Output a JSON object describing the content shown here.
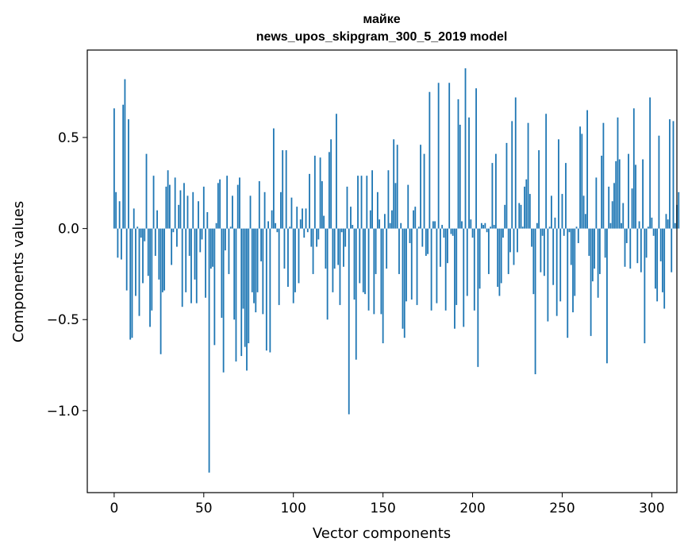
{
  "chart_data": {
    "type": "bar",
    "title_line1": "майке",
    "title_line2": "news_upos_skipgram_300_5_2019 model",
    "xlabel": "Vector components",
    "ylabel": "Components values",
    "xlim": [
      -15,
      314
    ],
    "ylim": [
      -1.45,
      0.98
    ],
    "x_ticks": [
      0,
      50,
      100,
      150,
      200,
      250,
      300
    ],
    "x_tick_labels": [
      "0",
      "50",
      "100",
      "150",
      "200",
      "250",
      "300"
    ],
    "y_ticks": [
      -1.0,
      -0.5,
      0.0,
      0.5
    ],
    "y_tick_labels": [
      "−1.0",
      "−0.5",
      "0.0",
      "0.5"
    ],
    "bar_color": "#1f77b4",
    "values": [
      0.66,
      0.2,
      -0.16,
      0.15,
      -0.17,
      0.68,
      0.82,
      -0.34,
      0.6,
      -0.61,
      -0.6,
      0.11,
      -0.37,
      0.01,
      -0.48,
      -0.05,
      -0.3,
      -0.07,
      0.41,
      -0.26,
      -0.54,
      -0.45,
      0.29,
      -0.15,
      0.1,
      -0.28,
      -0.69,
      -0.35,
      -0.34,
      0.23,
      0.32,
      0.24,
      -0.2,
      -0.02,
      0.28,
      -0.1,
      0.13,
      0.21,
      -0.43,
      0.25,
      -0.35,
      0.18,
      -0.15,
      -0.41,
      0.2,
      -0.28,
      -0.41,
      0.15,
      -0.13,
      -0.06,
      0.23,
      -0.38,
      0.09,
      -1.34,
      -0.22,
      -0.21,
      -0.64,
      0.03,
      0.25,
      0.27,
      -0.49,
      -0.79,
      -0.12,
      0.29,
      -0.25,
      0.01,
      0.18,
      -0.5,
      -0.73,
      0.24,
      0.28,
      -0.7,
      -0.44,
      -0.65,
      -0.78,
      -0.63,
      0.18,
      -0.35,
      -0.41,
      -0.46,
      -0.35,
      0.26,
      -0.18,
      -0.47,
      0.2,
      -0.67,
      0.04,
      -0.68,
      0.1,
      0.55,
      0.03,
      -0.02,
      -0.42,
      0.2,
      0.43,
      -0.22,
      0.43,
      -0.32,
      0.01,
      0.17,
      -0.41,
      -0.35,
      0.12,
      -0.3,
      0.05,
      0.11,
      -0.05,
      0.11,
      -0.02,
      0.3,
      -0.1,
      -0.25,
      0.4,
      -0.1,
      -0.06,
      0.39,
      0.26,
      0.07,
      -0.22,
      -0.5,
      0.42,
      0.49,
      -0.35,
      -0.22,
      0.63,
      -0.2,
      -0.42,
      -0.02,
      -0.21,
      -0.1,
      0.23,
      -1.02,
      0.12,
      0.02,
      -0.39,
      -0.72,
      0.29,
      -0.3,
      0.29,
      -0.35,
      -0.36,
      0.29,
      -0.45,
      0.1,
      0.32,
      -0.47,
      -0.25,
      0.2,
      0.05,
      -0.47,
      -0.63,
      0.08,
      -0.22,
      0.32,
      0.03,
      0.1,
      0.49,
      0.25,
      0.46,
      -0.25,
      0.03,
      -0.55,
      -0.6,
      -0.4,
      0.24,
      -0.08,
      -0.39,
      0.1,
      0.12,
      -0.42,
      0.01,
      0.46,
      -0.1,
      0.41,
      -0.15,
      -0.14,
      0.75,
      -0.45,
      0.04,
      0.04,
      -0.41,
      0.8,
      -0.21,
      0.02,
      -0.05,
      -0.45,
      -0.19,
      0.8,
      -0.03,
      -0.04,
      -0.55,
      -0.42,
      0.71,
      0.57,
      0.04,
      -0.54,
      0.88,
      -0.37,
      0.61,
      0.05,
      -0.05,
      -0.45,
      0.77,
      -0.76,
      -0.33,
      0.03,
      0.02,
      0.03,
      -0.02,
      -0.25,
      0.01,
      0.36,
      0.02,
      0.41,
      -0.32,
      -0.37,
      -0.3,
      -0.05,
      0.13,
      0.47,
      -0.25,
      -0.13,
      0.59,
      -0.2,
      0.72,
      -0.13,
      0.14,
      0.13,
      0.01,
      0.23,
      0.27,
      0.58,
      0.19,
      -0.1,
      -0.36,
      -0.8,
      0.03,
      0.43,
      -0.24,
      -0.04,
      -0.26,
      0.63,
      -0.51,
      0.01,
      0.18,
      -0.31,
      0.06,
      -0.48,
      0.49,
      -0.4,
      0.19,
      -0.04,
      0.36,
      -0.6,
      -0.02,
      -0.2,
      -0.46,
      -0.37,
      0.01,
      -0.08,
      0.56,
      0.52,
      0.18,
      0.08,
      0.65,
      -0.15,
      -0.59,
      -0.29,
      -0.22,
      0.28,
      -0.38,
      -0.25,
      0.4,
      0.58,
      -0.16,
      -0.74,
      0.23,
      0.03,
      0.15,
      0.25,
      0.37,
      0.61,
      0.38,
      0.03,
      0.14,
      -0.21,
      -0.08,
      0.41,
      -0.22,
      0.22,
      0.66,
      0.35,
      -0.19,
      0.04,
      -0.24,
      0.38,
      -0.63,
      -0.16,
      0.01,
      0.72,
      0.06,
      -0.04,
      -0.33,
      -0.4,
      0.51,
      -0.18,
      -0.35,
      -0.44,
      0.08,
      0.05,
      0.6,
      -0.24,
      0.59,
      0.03,
      0.13,
      0.2
    ]
  }
}
